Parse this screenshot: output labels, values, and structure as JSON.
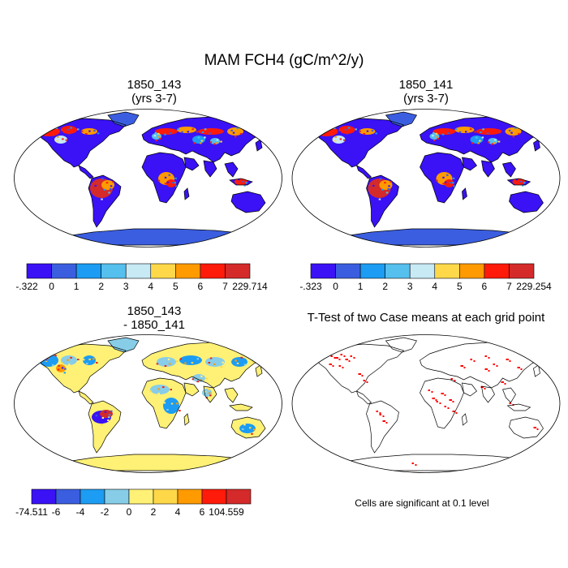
{
  "title": "MAM FCH4 (gC/m^2/y)",
  "panels": [
    {
      "id": "p1",
      "title1": "1850_143",
      "title2": "(yrs 3-7)",
      "colors_ref": "seq"
    },
    {
      "id": "p2",
      "title1": "1850_141",
      "title2": "(yrs 3-7)",
      "colors_ref": "seq"
    },
    {
      "id": "p3",
      "title1": "1850_143",
      "title2": "- 1850_141",
      "colors_ref": "diff"
    },
    {
      "id": "p4",
      "title1": "T-Test of two Case means at each grid point",
      "title2": ""
    }
  ],
  "colorbars": {
    "cb1": {
      "labels": [
        "-.322",
        "0",
        "1",
        "2",
        "3",
        "4",
        "5",
        "6",
        "7",
        "229.714"
      ]
    },
    "cb2": {
      "labels": [
        "-.323",
        "0",
        "1",
        "2",
        "3",
        "4",
        "5",
        "6",
        "7",
        "229.254"
      ]
    },
    "cb3": {
      "labels": [
        "-74.511",
        "-6",
        "-4",
        "-2",
        "0",
        "2",
        "4",
        "6",
        "104.559"
      ]
    }
  },
  "colors": {
    "seq": [
      "#3a12f5",
      "#3b5ee0",
      "#1c9cf2",
      "#55bfee",
      "#c7eaf5",
      "#ffd84a",
      "#ff9a00",
      "#ff1a0a",
      "#d42a2a"
    ],
    "diff": [
      "#3a12f5",
      "#3b5ee0",
      "#1c9cf2",
      "#87cde8",
      "#fff176",
      "#ffd84a",
      "#ff9a00",
      "#ff1a0a",
      "#d42a2a"
    ],
    "land_seq": "#3a12f5",
    "land_diff": "#fff176",
    "sig": "#ff0000"
  },
  "significance_note": "Cells are significant at 0.1 level"
}
